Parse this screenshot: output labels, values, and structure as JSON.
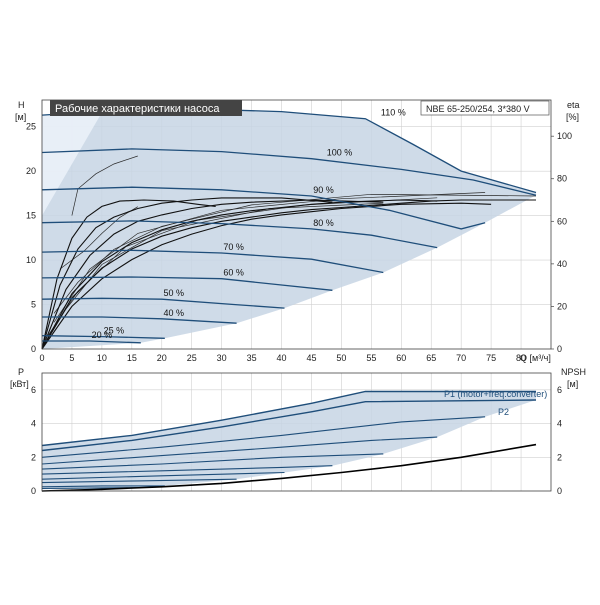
{
  "chart_data": [
    {
      "type": "line",
      "title": "Рабочие характеристики насоса",
      "model_label": "NBE 65-250/254, 3*380 V",
      "ylabel_left": "H",
      "ylabel_left_unit": "[м]",
      "ylabel_right": "eta",
      "ylabel_right_unit": "[%]",
      "xlabel": "Q [м³/ч]",
      "xlim": [
        0,
        85
      ],
      "ylim_left": [
        0,
        28
      ],
      "ylim_right": [
        0,
        117
      ],
      "x_ticks": [
        0,
        5,
        10,
        15,
        20,
        25,
        30,
        35,
        40,
        45,
        50,
        55,
        60,
        65,
        70,
        75,
        80
      ],
      "y_ticks_left": [
        0,
        5,
        10,
        15,
        20,
        25
      ],
      "y_ticks_right": [
        0,
        20,
        40,
        60,
        80,
        100
      ],
      "grid": true,
      "shaded_region_color": "#c7d5e4",
      "curve_color": "#1f4e7a",
      "efficiency_color": "#111111",
      "speed_curves": [
        {
          "label": "110 %",
          "points": [
            [
              0,
              26.3
            ],
            [
              12,
              26.8
            ],
            [
              25,
              27.0
            ],
            [
              40,
              26.7
            ],
            [
              54,
              25.9
            ],
            [
              62,
              23.0
            ],
            [
              70,
              20.0
            ],
            [
              82.5,
              17.6
            ]
          ]
        },
        {
          "label": "100 %",
          "points": [
            [
              0,
              22.1
            ],
            [
              15,
              22.5
            ],
            [
              30,
              22.2
            ],
            [
              45,
              21.4
            ],
            [
              60,
              20.2
            ],
            [
              72,
              19.0
            ],
            [
              82.5,
              17.3
            ]
          ]
        },
        {
          "label": "90 %",
          "points": [
            [
              0,
              17.9
            ],
            [
              15,
              18.2
            ],
            [
              30,
              17.9
            ],
            [
              45,
              17.2
            ],
            [
              58,
              15.6
            ],
            [
              70,
              13.5
            ],
            [
              74,
              14.2
            ]
          ]
        },
        {
          "label": "80 %",
          "points": [
            [
              0,
              14.2
            ],
            [
              15,
              14.4
            ],
            [
              30,
              14.1
            ],
            [
              45,
              13.5
            ],
            [
              55,
              12.8
            ],
            [
              66,
              11.4
            ]
          ]
        },
        {
          "label": "70 %",
          "points": [
            [
              0,
              10.9
            ],
            [
              15,
              11.1
            ],
            [
              30,
              10.8
            ],
            [
              45,
              10.1
            ],
            [
              57,
              8.6
            ]
          ]
        },
        {
          "label": "60 %",
          "points": [
            [
              0,
              8.0
            ],
            [
              15,
              8.1
            ],
            [
              30,
              7.9
            ],
            [
              40,
              7.2
            ],
            [
              48.5,
              6.6
            ]
          ]
        },
        {
          "label": "50 %",
          "points": [
            [
              0,
              5.6
            ],
            [
              10,
              5.7
            ],
            [
              20,
              5.6
            ],
            [
              32,
              5.0
            ],
            [
              40.5,
              4.6
            ]
          ]
        },
        {
          "label": "40 %",
          "points": [
            [
              0,
              3.6
            ],
            [
              10,
              3.6
            ],
            [
              20,
              3.4
            ],
            [
              32.5,
              2.9
            ]
          ]
        },
        {
          "label": "25 %",
          "points": [
            [
              0,
              1.5
            ],
            [
              10,
              1.4
            ],
            [
              20.5,
              1.2
            ]
          ]
        },
        {
          "label": "20 %",
          "points": [
            [
              0,
              0.9
            ],
            [
              8,
              0.9
            ],
            [
              16.5,
              0.7
            ]
          ]
        }
      ],
      "efficiency_curves": [
        {
          "points": [
            [
              0,
              0
            ],
            [
              5,
              24
            ],
            [
              10,
              38
            ],
            [
              15,
              47
            ],
            [
              20,
              53
            ],
            [
              25,
              57
            ],
            [
              30,
              60
            ],
            [
              35,
              62
            ],
            [
              40,
              64
            ],
            [
              45,
              65.5
            ],
            [
              50,
              66.5
            ],
            [
              55,
              67.5
            ],
            [
              60,
              68.5
            ],
            [
              65,
              69.5
            ],
            [
              70,
              70
            ],
            [
              75,
              70
            ],
            [
              82.5,
              70
            ]
          ]
        },
        {
          "points": [
            [
              0,
              0
            ],
            [
              5,
              20
            ],
            [
              10,
              33
            ],
            [
              15,
              42
            ],
            [
              20,
              49
            ],
            [
              25,
              54
            ],
            [
              30,
              58
            ],
            [
              35,
              61
            ],
            [
              40,
              63
            ],
            [
              45,
              64.5
            ],
            [
              50,
              66
            ],
            [
              55,
              67
            ],
            [
              60,
              68
            ],
            [
              70,
              68.5
            ],
            [
              75,
              68
            ]
          ]
        },
        {
          "points": [
            [
              0,
              0
            ],
            [
              5,
              26
            ],
            [
              10,
              41
            ],
            [
              15,
              50
            ],
            [
              20,
              56
            ],
            [
              25,
              60
            ],
            [
              30,
              63
            ],
            [
              35,
              65
            ],
            [
              40,
              66.5
            ],
            [
              45,
              68
            ],
            [
              50,
              69
            ],
            [
              55,
              69.5
            ],
            [
              60,
              70
            ],
            [
              66,
              69.5
            ]
          ]
        },
        {
          "points": [
            [
              0,
              0
            ],
            [
              4,
              28
            ],
            [
              8,
              44
            ],
            [
              12,
              54
            ],
            [
              16,
              60
            ],
            [
              20,
              63
            ],
            [
              25,
              66
            ],
            [
              30,
              68
            ],
            [
              35,
              69
            ],
            [
              45,
              70
            ],
            [
              57,
              69
            ]
          ]
        },
        {
          "points": [
            [
              0,
              0
            ],
            [
              3,
              30
            ],
            [
              6,
              47
            ],
            [
              9,
              57
            ],
            [
              12,
              62
            ],
            [
              16,
              66
            ],
            [
              20,
              68.5
            ],
            [
              25,
              70
            ],
            [
              30,
              71
            ],
            [
              40,
              71
            ],
            [
              48.5,
              69
            ]
          ]
        },
        {
          "points": [
            [
              0,
              0
            ],
            [
              2.5,
              33
            ],
            [
              5,
              52
            ],
            [
              7.5,
              62
            ],
            [
              10,
              67
            ],
            [
              13,
              69.5
            ],
            [
              17,
              70
            ],
            [
              22,
              69.5
            ],
            [
              26,
              68
            ],
            [
              29,
              67
            ]
          ]
        }
      ],
      "region_clear_lines": [
        {
          "points": [
            [
              5,
              15
            ],
            [
              6,
              18
            ],
            [
              9,
              19.7
            ],
            [
              12,
              20.8
            ],
            [
              16,
              21.7
            ]
          ]
        },
        {
          "points": [
            [
              3,
              9
            ],
            [
              7,
              11
            ],
            [
              10,
              13
            ],
            [
              13,
              14.8
            ],
            [
              16,
              16
            ]
          ]
        },
        {
          "points": [
            [
              2,
              4
            ],
            [
              6,
              7.5
            ],
            [
              12,
              11.2
            ],
            [
              20,
              13.8
            ],
            [
              35,
              16.2
            ],
            [
              55,
              17.4
            ],
            [
              82.5,
              17.2
            ]
          ]
        },
        {
          "points": [
            [
              2,
              3
            ],
            [
              8,
              9
            ],
            [
              16,
              13
            ],
            [
              30,
              15.6
            ],
            [
              50,
              16.9
            ],
            [
              74,
              17.6
            ]
          ]
        },
        {
          "points": [
            [
              1,
              1.5
            ],
            [
              6,
              6.5
            ],
            [
              14,
              11.5
            ],
            [
              26,
              14.5
            ],
            [
              44,
              16.2
            ],
            [
              66,
              17
            ]
          ]
        },
        {
          "points": [
            [
              0.5,
              0.6
            ],
            [
              4,
              4.5
            ],
            [
              10,
              9.5
            ],
            [
              20,
              13.3
            ],
            [
              38,
              15.8
            ],
            [
              57,
              16.4
            ]
          ]
        }
      ],
      "shade_polygon": [
        [
          0,
          26.3
        ],
        [
          12,
          26.8
        ],
        [
          25,
          27.0
        ],
        [
          40,
          26.7
        ],
        [
          54,
          25.9
        ],
        [
          62,
          23.0
        ],
        [
          70,
          20.0
        ],
        [
          82.5,
          17.6
        ],
        [
          82.5,
          17.3
        ],
        [
          74,
          14.2
        ],
        [
          66,
          11.4
        ],
        [
          57,
          8.6
        ],
        [
          48.5,
          6.6
        ],
        [
          40.5,
          4.6
        ],
        [
          32.5,
          2.9
        ],
        [
          20.5,
          1.2
        ],
        [
          16.5,
          0.7
        ],
        [
          0,
          0
        ]
      ]
    },
    {
      "type": "line",
      "ylabel_left": "P",
      "ylabel_left_unit": "[кВт]",
      "ylabel_right": "NPSH",
      "ylabel_right_unit": "[м]",
      "xlim": [
        0,
        85
      ],
      "ylim_left": [
        0,
        7
      ],
      "ylim_right": [
        0,
        7
      ],
      "y_ticks_left": [
        0,
        2,
        4,
        6
      ],
      "y_ticks_right": [
        0,
        2,
        4,
        6
      ],
      "grid": true,
      "series": [
        {
          "name": "P1 (motor+freq.converter)",
          "points": [
            [
              0,
              2.7
            ],
            [
              15,
              3.3
            ],
            [
              30,
              4.2
            ],
            [
              45,
              5.2
            ],
            [
              54,
              5.9
            ],
            [
              62,
              5.9
            ],
            [
              70,
              5.9
            ],
            [
              82.5,
              5.9
            ]
          ]
        },
        {
          "name": "P2",
          "points": [
            [
              0,
              2.4
            ],
            [
              15,
              3.0
            ],
            [
              30,
              3.8
            ],
            [
              45,
              4.7
            ],
            [
              54,
              5.3
            ],
            [
              82.5,
              5.4
            ]
          ]
        }
      ],
      "power_curves": [
        {
          "points": [
            [
              0,
              2.0
            ],
            [
              20,
              2.6
            ],
            [
              40,
              3.3
            ],
            [
              60,
              4.1
            ],
            [
              74,
              4.4
            ]
          ]
        },
        {
          "points": [
            [
              0,
              1.6
            ],
            [
              20,
              2.1
            ],
            [
              40,
              2.6
            ],
            [
              55,
              3.0
            ],
            [
              66,
              3.2
            ]
          ]
        },
        {
          "points": [
            [
              0,
              1.3
            ],
            [
              20,
              1.6
            ],
            [
              40,
              2.0
            ],
            [
              57,
              2.2
            ]
          ]
        },
        {
          "points": [
            [
              0,
              1.0
            ],
            [
              20,
              1.2
            ],
            [
              40,
              1.4
            ],
            [
              48.5,
              1.5
            ]
          ]
        },
        {
          "points": [
            [
              0,
              0.7
            ],
            [
              20,
              0.9
            ],
            [
              40.5,
              1.1
            ]
          ]
        },
        {
          "points": [
            [
              0,
              0.5
            ],
            [
              16,
              0.6
            ],
            [
              32.5,
              0.7
            ]
          ]
        },
        {
          "points": [
            [
              0,
              0.25
            ],
            [
              10,
              0.3
            ],
            [
              20.5,
              0.3
            ]
          ]
        },
        {
          "points": [
            [
              0,
              0.15
            ],
            [
              16.5,
              0.2
            ]
          ]
        }
      ],
      "npsh_curve": {
        "points": [
          [
            0,
            0.0
          ],
          [
            10,
            0.1
          ],
          [
            20,
            0.25
          ],
          [
            30,
            0.45
          ],
          [
            40,
            0.75
          ],
          [
            50,
            1.1
          ],
          [
            60,
            1.5
          ],
          [
            70,
            2.0
          ],
          [
            82.5,
            2.75
          ]
        ]
      },
      "shade_polygon": [
        [
          0,
          2.7
        ],
        [
          15,
          3.3
        ],
        [
          30,
          4.2
        ],
        [
          45,
          5.2
        ],
        [
          54,
          5.9
        ],
        [
          62,
          5.9
        ],
        [
          70,
          5.9
        ],
        [
          82.5,
          5.9
        ],
        [
          82.5,
          5.4
        ],
        [
          74,
          4.4
        ],
        [
          66,
          3.2
        ],
        [
          57,
          2.2
        ],
        [
          48.5,
          1.5
        ],
        [
          40.5,
          1.1
        ],
        [
          32.5,
          0.7
        ],
        [
          20.5,
          0.3
        ],
        [
          16.5,
          0.2
        ],
        [
          0,
          0.1
        ]
      ]
    }
  ]
}
